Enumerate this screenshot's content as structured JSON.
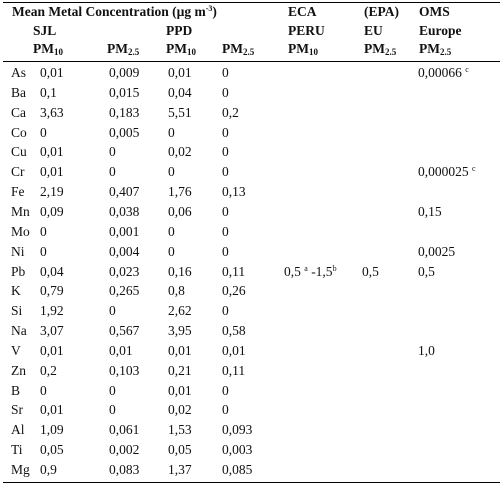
{
  "header": {
    "title": "Mean Metal Concentration (µg m",
    "title_exp": "-3",
    "title_close": ")",
    "sjl": "SJL",
    "ppd": "PPD",
    "pm10_a": "PM",
    "pm10_a_sub": "10",
    "pm25_a": "PM",
    "pm25_a_sub": "2.5",
    "pm10_b": "PM",
    "pm10_b_sub": "10",
    "pm25_b": "PM",
    "pm25_b_sub": "2.5",
    "eca": "ECA",
    "peru": "PERU",
    "eca_pm": "PM",
    "eca_pm_sub": "10",
    "epa": "(EPA)",
    "eu": "EU",
    "eu_pm": "PM",
    "eu_pm_sub": "2.5",
    "oms": "OMS",
    "europe": "Europe",
    "oms_pm": "PM",
    "oms_pm_sub": "2.5"
  },
  "rows": [
    {
      "el": "As",
      "v1": "0,01",
      "v2": "0,009",
      "v3": "0,01",
      "v4": "0",
      "eca": "",
      "eu": "",
      "oms": "0,00066",
      "oms_sup": "c"
    },
    {
      "el": "Ba",
      "v1": "0,1",
      "v2": "0,015",
      "v3": "0,04",
      "v4": "0",
      "eca": "",
      "eu": "",
      "oms": "",
      "oms_sup": ""
    },
    {
      "el": "Ca",
      "v1": "3,63",
      "v2": "0,183",
      "v3": "5,51",
      "v4": "0,2",
      "eca": "",
      "eu": "",
      "oms": "",
      "oms_sup": ""
    },
    {
      "el": "Co",
      "v1": "0",
      "v2": "0,005",
      "v3": "0",
      "v4": "0",
      "eca": "",
      "eu": "",
      "oms": "",
      "oms_sup": ""
    },
    {
      "el": "Cu",
      "v1": "0,01",
      "v2": "0",
      "v3": "0,02",
      "v4": "0",
      "eca": "",
      "eu": "",
      "oms": "",
      "oms_sup": ""
    },
    {
      "el": "Cr",
      "v1": "0,01",
      "v2": "0",
      "v3": "0",
      "v4": "0",
      "eca": "",
      "eu": "",
      "oms": "0,000025",
      "oms_sup": "c"
    },
    {
      "el": "Fe",
      "v1": "2,19",
      "v2": "0,407",
      "v3": "1,76",
      "v4": "0,13",
      "eca": "",
      "eu": "",
      "oms": "",
      "oms_sup": ""
    },
    {
      "el": "Mn",
      "v1": "0,09",
      "v2": "0,038",
      "v3": "0,06",
      "v4": "0",
      "eca": "",
      "eu": "",
      "oms": "0,15",
      "oms_sup": ""
    },
    {
      "el": "Mo",
      "v1": "0",
      "v2": "0,001",
      "v3": "0",
      "v4": "0",
      "eca": "",
      "eu": "",
      "oms": "",
      "oms_sup": ""
    },
    {
      "el": "Ni",
      "v1": "0",
      "v2": "0,004",
      "v3": "0",
      "v4": "0",
      "eca": "",
      "eu": "",
      "oms": "0,0025",
      "oms_sup": ""
    },
    {
      "el": "Pb",
      "v1": "0,04",
      "v2": "0,023",
      "v3": "0,16",
      "v4": "0,11",
      "eca": "0,5",
      "eca_sup": "a",
      "eca_mid": " -1,5",
      "eca_sup2": "b",
      "eu": "0,5",
      "oms": "0,5",
      "oms_sup": ""
    },
    {
      "el": "K",
      "v1": "0,79",
      "v2": "0,265",
      "v3": "0,8",
      "v4": "0,26",
      "eca": "",
      "eu": "",
      "oms": "",
      "oms_sup": ""
    },
    {
      "el": "Si",
      "v1": "1,92",
      "v2": "0",
      "v3": "2,62",
      "v4": "0",
      "eca": "",
      "eu": "",
      "oms": "",
      "oms_sup": ""
    },
    {
      "el": "Na",
      "v1": "3,07",
      "v2": "0,567",
      "v3": "3,95",
      "v4": "0,58",
      "eca": "",
      "eu": "",
      "oms": "",
      "oms_sup": ""
    },
    {
      "el": "V",
      "v1": "0,01",
      "v2": "0,01",
      "v3": "0,01",
      "v4": "0,01",
      "eca": "",
      "eu": "",
      "oms": "1,0",
      "oms_sup": ""
    },
    {
      "el": "Zn",
      "v1": "0,2",
      "v2": "0,103",
      "v3": "0,21",
      "v4": "0,11",
      "eca": "",
      "eu": "",
      "oms": "",
      "oms_sup": ""
    },
    {
      "el": "B",
      "v1": "0",
      "v2": "0",
      "v3": "0,01",
      "v4": "0",
      "eca": "",
      "eu": "",
      "oms": "",
      "oms_sup": ""
    },
    {
      "el": "Sr",
      "v1": "0,01",
      "v2": "0",
      "v3": "0,02",
      "v4": "0",
      "eca": "",
      "eu": "",
      "oms": "",
      "oms_sup": ""
    },
    {
      "el": "Al",
      "v1": "1,09",
      "v2": "0,061",
      "v3": "1,53",
      "v4": "0,093",
      "eca": "",
      "eu": "",
      "oms": "",
      "oms_sup": ""
    },
    {
      "el": "Ti",
      "v1": "0,05",
      "v2": "0,002",
      "v3": "0,05",
      "v4": "0,003",
      "eca": "",
      "eu": "",
      "oms": "",
      "oms_sup": ""
    },
    {
      "el": "Mg",
      "v1": "0,9",
      "v2": "0,083",
      "v3": "1,37",
      "v4": "0,085",
      "eca": "",
      "eu": "",
      "oms": "",
      "oms_sup": ""
    }
  ]
}
